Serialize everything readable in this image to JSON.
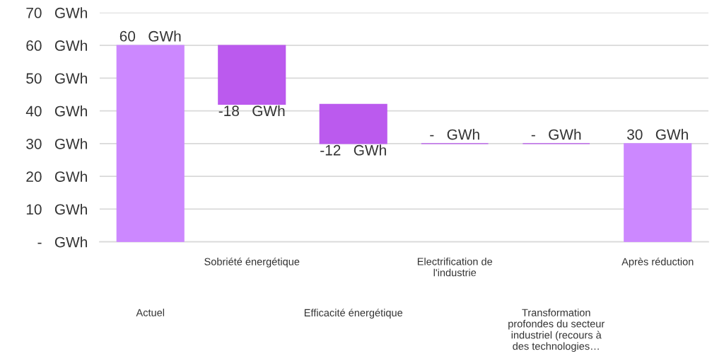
{
  "chart_data": {
    "type": "bar",
    "categories": [
      "Actuel",
      "Sobriété énergétique",
      "Efficacité énergétique",
      "Electrification de\nl'industrie",
      "Transformation\nprofondes du secteur\nindustriel (recours à\ndes technologies…",
      "Après réduction"
    ],
    "values": [
      60,
      -18,
      -12,
      0,
      0,
      30
    ],
    "base": [
      0,
      60,
      42,
      30,
      30,
      0
    ],
    "colors": [
      "#cc88ff",
      "#bb5aee",
      "#bb5aee",
      "#bb5aee",
      "#bb5aee",
      "#cc88ff"
    ],
    "value_labels": [
      "60   GWh",
      "-18   GWh",
      "-12   GWh",
      "-   GWh",
      "-   GWh",
      "30   GWh"
    ],
    "ylim": [
      0,
      70
    ],
    "yticks": [
      {
        "value": 0,
        "label": "-   GWh"
      },
      {
        "value": 10,
        "label": "10   GWh"
      },
      {
        "value": 20,
        "label": "20   GWh"
      },
      {
        "value": 30,
        "label": "30   GWh"
      },
      {
        "value": 40,
        "label": "40   GWh"
      },
      {
        "value": 50,
        "label": "50   GWh"
      },
      {
        "value": 60,
        "label": "60   GWh"
      },
      {
        "value": 70,
        "label": "70   GWh"
      }
    ],
    "grid": "y"
  }
}
